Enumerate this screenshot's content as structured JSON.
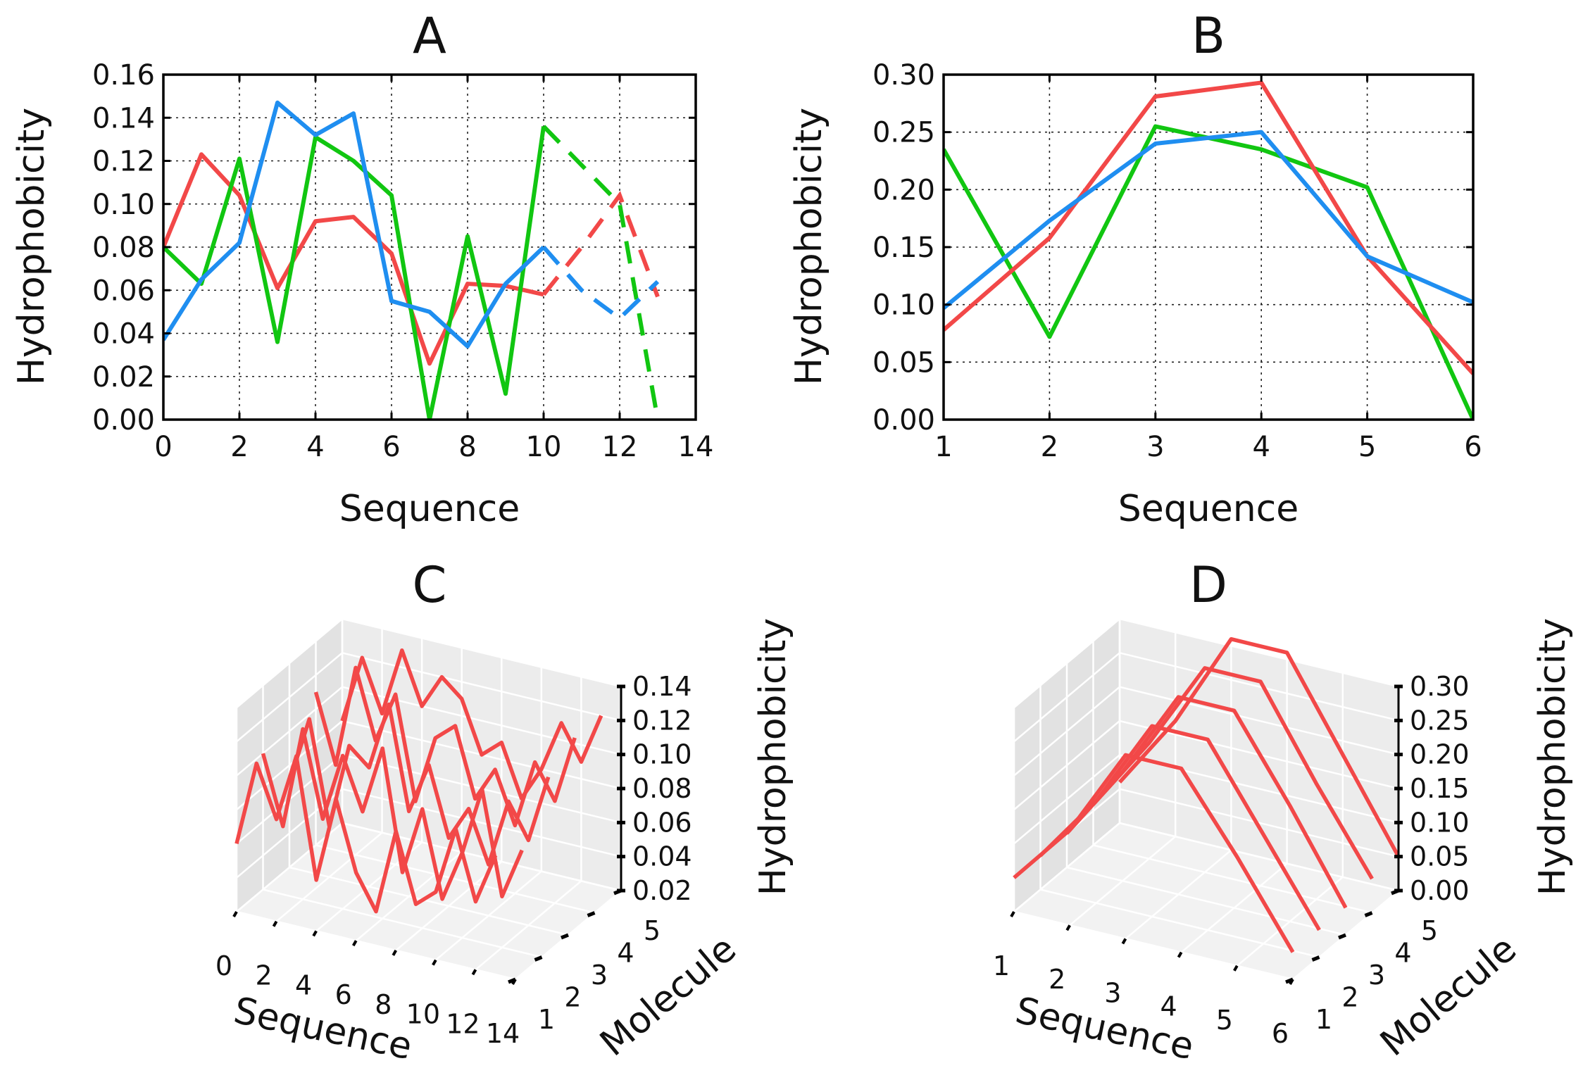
{
  "figure": {
    "panels": [
      "A",
      "B",
      "C",
      "D"
    ]
  },
  "colors": {
    "red": "#f24848",
    "green": "#11c611",
    "blue": "#1f8ef0",
    "pane_back": "#ececec",
    "pane_side": "#e2e2e2",
    "pane_floor": "#f2f2f2",
    "grid3d": "#ffffff"
  },
  "chart_data": [
    {
      "panel": "A",
      "type": "line",
      "title": "A",
      "xlabel": "Sequence",
      "ylabel": "Hydrophobicity",
      "xlim": [
        0,
        14
      ],
      "ylim": [
        0,
        0.16
      ],
      "xticks": [
        "0",
        "2",
        "4",
        "6",
        "8",
        "10",
        "12",
        "14"
      ],
      "yticks": [
        "0.00",
        "0.02",
        "0.04",
        "0.06",
        "0.08",
        "0.10",
        "0.12",
        "0.14",
        "0.16"
      ],
      "grid": true,
      "series": [
        {
          "name": "red",
          "color": "red",
          "x": [
            0,
            1,
            2,
            3,
            4,
            5,
            6,
            7,
            8,
            9,
            10
          ],
          "values": [
            0.08,
            0.123,
            0.104,
            0.061,
            0.092,
            0.094,
            0.077,
            0.026,
            0.063,
            0.062,
            0.058
          ],
          "dashed": {
            "x": [
              10,
              11,
              12,
              13
            ],
            "values": [
              0.058,
              0.08,
              0.104,
              0.057
            ]
          }
        },
        {
          "name": "green",
          "color": "green",
          "x": [
            0,
            1,
            2,
            3,
            4,
            5,
            6,
            7,
            8,
            9,
            10
          ],
          "values": [
            0.08,
            0.063,
            0.121,
            0.036,
            0.131,
            0.12,
            0.104,
            0.0,
            0.085,
            0.012,
            0.136
          ],
          "dashed": {
            "x": [
              10,
              11,
              12,
              13
            ],
            "values": [
              0.136,
              0.118,
              0.1,
              0.0
            ]
          }
        },
        {
          "name": "blue",
          "color": "blue",
          "x": [
            0,
            1,
            2,
            3,
            4,
            5,
            6,
            7,
            8,
            9,
            10
          ],
          "values": [
            0.037,
            0.065,
            0.082,
            0.147,
            0.132,
            0.142,
            0.055,
            0.05,
            0.034,
            0.063,
            0.08
          ],
          "dashed": {
            "x": [
              10,
              11,
              12,
              13
            ],
            "values": [
              0.08,
              0.06,
              0.047,
              0.064
            ]
          }
        }
      ]
    },
    {
      "panel": "B",
      "type": "line",
      "title": "B",
      "xlabel": "Sequence",
      "ylabel": "Hydrophobicity",
      "xlim": [
        1,
        6
      ],
      "ylim": [
        0,
        0.3
      ],
      "xticks": [
        "1",
        "2",
        "3",
        "4",
        "5",
        "6"
      ],
      "yticks": [
        "0.00",
        "0.05",
        "0.10",
        "0.15",
        "0.20",
        "0.25",
        "0.30"
      ],
      "grid": true,
      "series": [
        {
          "name": "green",
          "color": "green",
          "x": [
            1,
            2,
            3,
            4,
            5,
            6
          ],
          "values": [
            0.235,
            0.072,
            0.255,
            0.235,
            0.202,
            0.0
          ]
        },
        {
          "name": "red",
          "color": "red",
          "x": [
            1,
            2,
            3,
            4,
            5,
            6
          ],
          "values": [
            0.078,
            0.158,
            0.281,
            0.293,
            0.142,
            0.04
          ]
        },
        {
          "name": "blue",
          "color": "blue",
          "x": [
            1,
            2,
            3,
            4,
            5,
            6
          ],
          "values": [
            0.097,
            0.173,
            0.24,
            0.25,
            0.142,
            0.102
          ]
        }
      ]
    },
    {
      "panel": "C",
      "type": "line3d",
      "title": "C",
      "xlabel": "Sequence",
      "ylabel": "Molecule",
      "zlabel": "Hydrophobicity",
      "xlim": [
        0,
        14
      ],
      "ylim": [
        1,
        5
      ],
      "zlim": [
        0.02,
        0.14
      ],
      "xticks": [
        "0",
        "2",
        "4",
        "6",
        "8",
        "10",
        "12",
        "14"
      ],
      "yticks": [
        "1",
        "2",
        "3",
        "4",
        "5"
      ],
      "zticks": [
        "0.02",
        "0.04",
        "0.06",
        "0.08",
        "0.10",
        "0.12",
        "0.14"
      ],
      "series": [
        {
          "molecule": 1,
          "x": [
            0,
            1,
            2,
            3,
            4,
            5,
            6,
            7,
            8,
            9,
            10,
            11,
            12,
            13
          ],
          "values": [
            0.06,
            0.11,
            0.08,
            0.12,
            0.05,
            0.1,
            0.06,
            0.04,
            0.09,
            0.05,
            0.06,
            0.1,
            0.06,
            0.09
          ]
        },
        {
          "molecule": 2,
          "x": [
            0,
            1,
            2,
            3,
            4,
            5,
            6,
            7,
            8,
            9,
            10,
            11,
            12,
            13
          ],
          "values": [
            0.1,
            0.06,
            0.12,
            0.07,
            0.11,
            0.08,
            0.12,
            0.05,
            0.09,
            0.04,
            0.07,
            0.11,
            0.05,
            0.08
          ]
        },
        {
          "molecule": 3,
          "x": [
            0,
            1,
            2,
            3,
            4,
            5,
            6,
            7,
            8,
            9,
            10,
            11,
            12,
            13
          ],
          "values": [
            0.07,
            0.11,
            0.05,
            0.1,
            0.09,
            0.13,
            0.07,
            0.1,
            0.06,
            0.08,
            0.05,
            0.09,
            0.07,
            0.11
          ]
        },
        {
          "molecule": 4,
          "x": [
            0,
            1,
            2,
            3,
            4,
            5,
            6,
            7,
            8,
            9,
            10,
            11,
            12,
            13
          ],
          "values": [
            0.11,
            0.07,
            0.13,
            0.09,
            0.12,
            0.06,
            0.1,
            0.11,
            0.07,
            0.09,
            0.06,
            0.1,
            0.08,
            0.12
          ]
        },
        {
          "molecule": 5,
          "x": [
            0,
            1,
            2,
            3,
            4,
            5,
            6,
            7,
            8,
            9,
            10,
            11,
            12,
            13
          ],
          "values": [
            0.08,
            0.12,
            0.09,
            0.13,
            0.1,
            0.12,
            0.11,
            0.08,
            0.09,
            0.06,
            0.08,
            0.11,
            0.09,
            0.12
          ]
        }
      ]
    },
    {
      "panel": "D",
      "type": "line3d",
      "title": "D",
      "xlabel": "Sequence",
      "ylabel": "Molecule",
      "zlabel": "Hydrophobicity",
      "xlim": [
        1,
        6
      ],
      "ylim": [
        1,
        5
      ],
      "zlim": [
        0,
        0.3
      ],
      "xticks": [
        "1",
        "2",
        "3",
        "4",
        "5",
        "6"
      ],
      "yticks": [
        "1",
        "2",
        "3",
        "4",
        "5"
      ],
      "zticks": [
        "0.00",
        "0.05",
        "0.10",
        "0.15",
        "0.20",
        "0.25",
        "0.30"
      ],
      "series": [
        {
          "molecule": 1,
          "x": [
            1,
            2,
            3,
            4,
            5,
            6
          ],
          "values": [
            0.05,
            0.14,
            0.27,
            0.27,
            0.16,
            0.04
          ]
        },
        {
          "molecule": 2,
          "x": [
            1,
            2,
            3,
            4,
            5,
            6
          ],
          "values": [
            0.05,
            0.15,
            0.28,
            0.28,
            0.16,
            0.04
          ]
        },
        {
          "molecule": 3,
          "x": [
            1,
            2,
            3,
            4,
            5,
            6
          ],
          "values": [
            0.05,
            0.16,
            0.29,
            0.29,
            0.17,
            0.04
          ]
        },
        {
          "molecule": 4,
          "x": [
            1,
            2,
            3,
            4,
            5,
            6
          ],
          "values": [
            0.06,
            0.17,
            0.3,
            0.3,
            0.17,
            0.05
          ]
        },
        {
          "molecule": 5,
          "x": [
            1,
            2,
            3,
            4,
            5,
            6
          ],
          "values": [
            0.06,
            0.17,
            0.31,
            0.31,
            0.18,
            0.05
          ]
        }
      ]
    }
  ]
}
